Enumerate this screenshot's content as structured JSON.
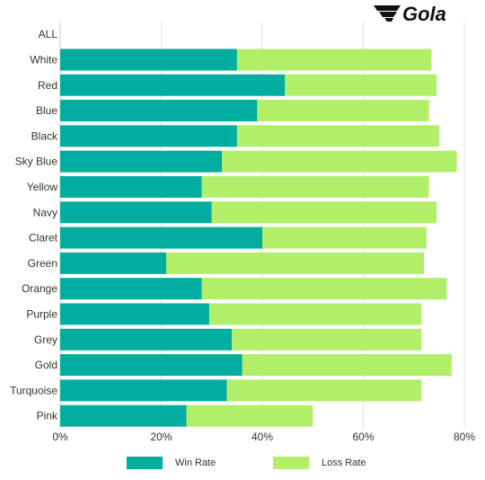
{
  "brand": {
    "logo_text": "Gola",
    "logo_color": "#111111"
  },
  "colors": {
    "win": "#00ad9f",
    "loss": "#b1ef69",
    "grid": "#e3e3e3"
  },
  "chart_data": {
    "type": "bar",
    "orientation": "horizontal",
    "stacked": true,
    "categories": [
      "ALL",
      "White",
      "Red",
      "Blue",
      "Black",
      "Sky Blue",
      "Yellow",
      "Navy",
      "Claret",
      "Green",
      "Orange",
      "Purple",
      "Grey",
      "Gold",
      "Turquoise",
      "Pink"
    ],
    "series": [
      {
        "name": "Win Rate",
        "color": "#00ad9f",
        "values": [
          null,
          35,
          44.5,
          39,
          35,
          32,
          28,
          30,
          40,
          21,
          28,
          29.5,
          34,
          36,
          33,
          25
        ]
      },
      {
        "name": "Loss Rate",
        "color": "#b1ef69",
        "values": [
          null,
          38.5,
          30,
          34,
          40,
          46.5,
          45,
          44.5,
          32.5,
          51,
          48.5,
          42,
          37.5,
          41.5,
          38.5,
          25
        ]
      }
    ],
    "xlim": [
      0,
      80
    ],
    "xticks": [
      "0%",
      "20%",
      "40%",
      "60%",
      "80%"
    ],
    "grid": true,
    "legend": "bottom-center"
  }
}
